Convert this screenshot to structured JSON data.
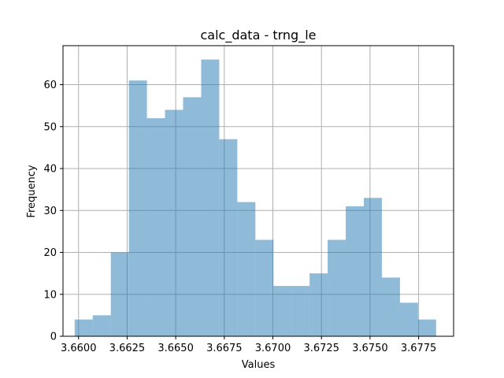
{
  "chart_data": {
    "type": "bar",
    "subtype": "histogram",
    "title": "calc_data - trng_le",
    "xlabel": "Values",
    "ylabel": "Frequency",
    "xlim": [
      3.6592,
      3.6793
    ],
    "ylim": [
      0,
      69.3
    ],
    "x_ticks": [
      "3.6600",
      "3.6625",
      "3.6650",
      "3.6675",
      "3.6700",
      "3.6725",
      "3.6750",
      "3.6775"
    ],
    "x_tick_values": [
      3.66,
      3.6625,
      3.665,
      3.6675,
      3.67,
      3.6725,
      3.675,
      3.6775
    ],
    "y_ticks": [
      "0",
      "10",
      "20",
      "30",
      "40",
      "50",
      "60"
    ],
    "y_tick_values": [
      0,
      10,
      20,
      30,
      40,
      50,
      60
    ],
    "bin_start": 3.6598,
    "bin_width": 0.00093,
    "values": [
      4,
      5,
      20,
      61,
      52,
      54,
      57,
      66,
      47,
      32,
      23,
      12,
      12,
      15,
      23,
      31,
      33,
      14,
      8,
      4
    ],
    "bar_color": "#1f77b4",
    "bar_opacity": 0.5,
    "grid": true
  }
}
